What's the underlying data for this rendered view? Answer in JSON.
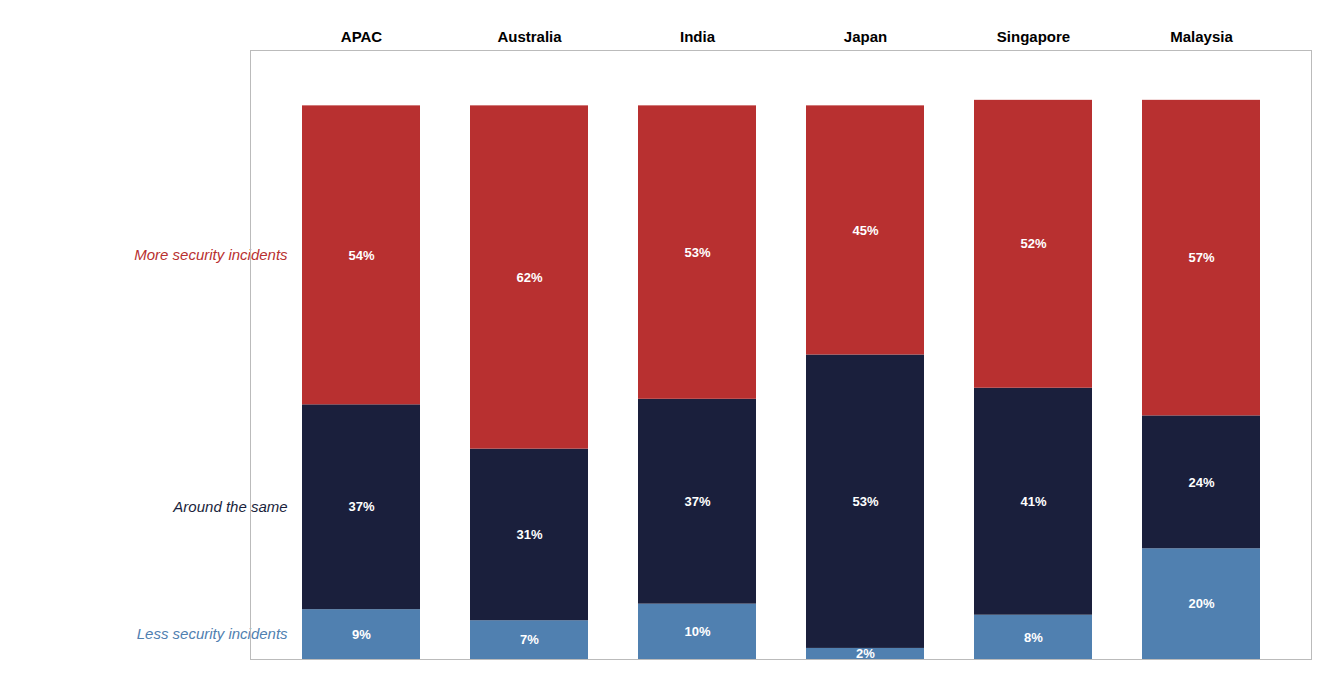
{
  "chart_data": {
    "type": "bar",
    "stacked": true,
    "data_labels": true,
    "tick_labels": "x",
    "categories": [
      "APAC",
      "Australia",
      "India",
      "Japan",
      "Singapore",
      "Malaysia"
    ],
    "series": [
      {
        "name": "Less security incidents",
        "color": "#5080b0",
        "values": [
          9,
          7,
          10,
          2,
          8,
          20
        ],
        "value_labels": [
          "9%",
          "7%",
          "10%",
          "2%",
          "8%",
          "20%"
        ]
      },
      {
        "name": "Around the same",
        "color": "#1a1f3c",
        "values": [
          37,
          31,
          37,
          53,
          41,
          24
        ],
        "value_labels": [
          "37%",
          "31%",
          "37%",
          "53%",
          "41%",
          "24%"
        ]
      },
      {
        "name": "More security incidents",
        "color": "#b83030",
        "values": [
          54,
          62,
          53,
          45,
          52,
          57
        ],
        "value_labels": [
          "54%",
          "62%",
          "53%",
          "45%",
          "52%",
          "57%"
        ]
      }
    ],
    "ylim": [
      0,
      110
    ]
  }
}
